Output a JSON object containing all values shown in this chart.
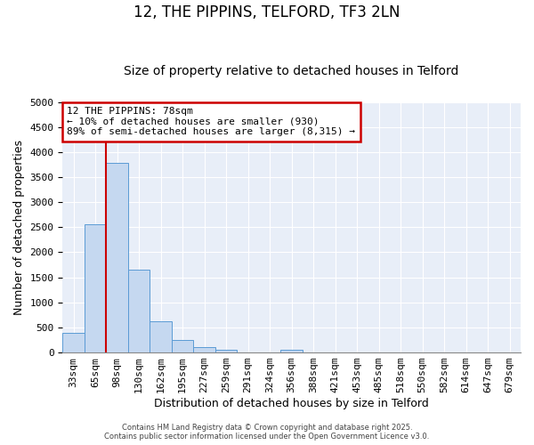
{
  "title1": "12, THE PIPPINS, TELFORD, TF3 2LN",
  "title2": "Size of property relative to detached houses in Telford",
  "xlabel": "Distribution of detached houses by size in Telford",
  "ylabel": "Number of detached properties",
  "categories": [
    "33sqm",
    "65sqm",
    "98sqm",
    "130sqm",
    "162sqm",
    "195sqm",
    "227sqm",
    "259sqm",
    "291sqm",
    "324sqm",
    "356sqm",
    "388sqm",
    "421sqm",
    "453sqm",
    "485sqm",
    "518sqm",
    "550sqm",
    "582sqm",
    "614sqm",
    "647sqm",
    "679sqm"
  ],
  "values": [
    390,
    2560,
    3780,
    1660,
    615,
    250,
    110,
    60,
    0,
    0,
    55,
    0,
    0,
    0,
    0,
    0,
    0,
    0,
    0,
    0,
    0
  ],
  "bar_color": "#c5d8f0",
  "bar_edge_color": "#5b9bd5",
  "red_line_x": 1.5,
  "annotation_text": "12 THE PIPPINS: 78sqm\n← 10% of detached houses are smaller (930)\n89% of semi-detached houses are larger (8,315) →",
  "annotation_box_color": "#ffffff",
  "annotation_border_color": "#cc0000",
  "ylim": [
    0,
    5000
  ],
  "yticks": [
    0,
    500,
    1000,
    1500,
    2000,
    2500,
    3000,
    3500,
    4000,
    4500,
    5000
  ],
  "fig_bg_color": "#ffffff",
  "axes_bg_color": "#e8eef8",
  "grid_color": "#ffffff",
  "footer_text": "Contains HM Land Registry data © Crown copyright and database right 2025.\nContains public sector information licensed under the Open Government Licence v3.0.",
  "title1_fontsize": 12,
  "title2_fontsize": 10,
  "ylabel_fontsize": 9,
  "xlabel_fontsize": 9,
  "annotation_fontsize": 8,
  "tick_fontsize": 8,
  "footer_fontsize": 6
}
